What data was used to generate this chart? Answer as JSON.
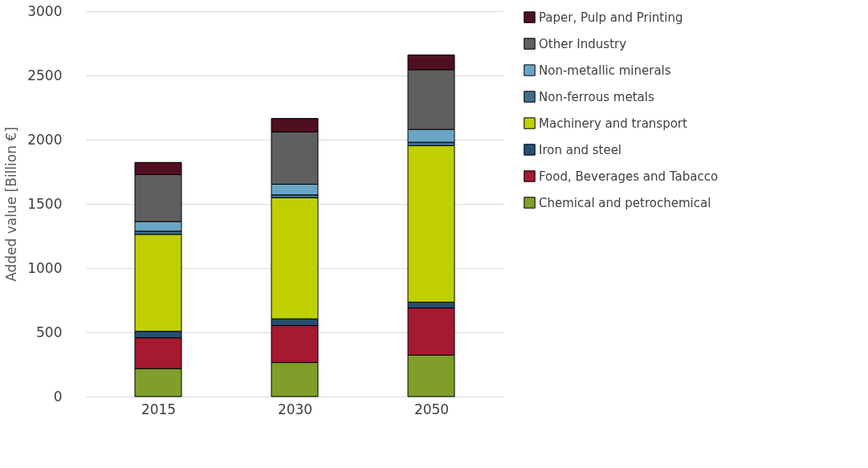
{
  "chart_data": {
    "type": "bar",
    "stacked": true,
    "ylabel": "Added value [Billion €]",
    "categories": [
      "2015",
      "2030",
      "2050"
    ],
    "series": [
      {
        "name": "Chemical and petrochemical",
        "color": "#7f9f2a",
        "values": [
          218,
          265,
          323
        ]
      },
      {
        "name": "Food, Beverages and Tabacco",
        "color": "#a51931",
        "values": [
          240,
          288,
          367
        ]
      },
      {
        "name": "Iron and steel",
        "color": "#254e73",
        "values": [
          50,
          52,
          45
        ]
      },
      {
        "name": "Machinery and transport",
        "color": "#bfcf00",
        "values": [
          755,
          942,
          1218
        ]
      },
      {
        "name": "Non-ferrous metals",
        "color": "#3f6f8a",
        "values": [
          25,
          23,
          27
        ]
      },
      {
        "name": "Non-metallic minerals",
        "color": "#6aa6c4",
        "values": [
          75,
          83,
          100
        ]
      },
      {
        "name": "Other Industry",
        "color": "#5f5f5f",
        "values": [
          365,
          407,
          465
        ]
      },
      {
        "name": "Paper, Pulp and Printing",
        "color": "#4f0f1f",
        "values": [
          95,
          105,
          115
        ]
      }
    ],
    "ylim": [
      0,
      3000
    ],
    "yticks": [
      0,
      500,
      1000,
      1500,
      2000,
      2500,
      3000
    ],
    "grid": "y",
    "legend": "right"
  }
}
